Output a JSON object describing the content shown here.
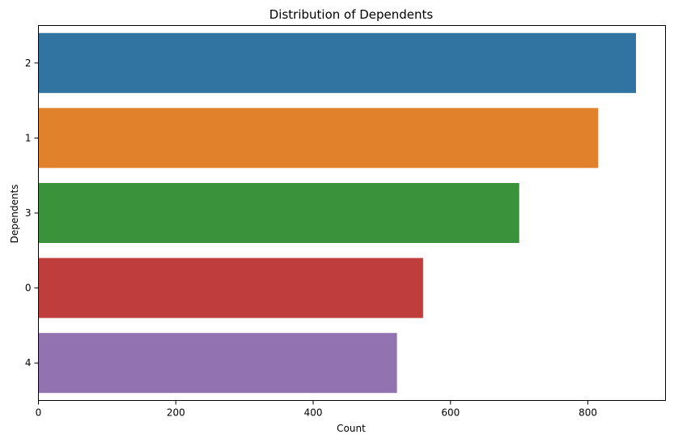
{
  "chart_data": {
    "type": "bar",
    "orientation": "horizontal",
    "title": "Distribution of Dependents",
    "xlabel": "Count",
    "ylabel": "Dependents",
    "categories": [
      "2",
      "1",
      "3",
      "0",
      "4"
    ],
    "values": [
      870,
      815,
      700,
      560,
      522
    ],
    "colors": [
      "#3274a1",
      "#e1812c",
      "#3a923a",
      "#c03d3e",
      "#9372b2"
    ],
    "xlim": [
      0,
      913
    ],
    "xticks": [
      0,
      200,
      400,
      600,
      800
    ],
    "grid": false,
    "legend": "none"
  }
}
